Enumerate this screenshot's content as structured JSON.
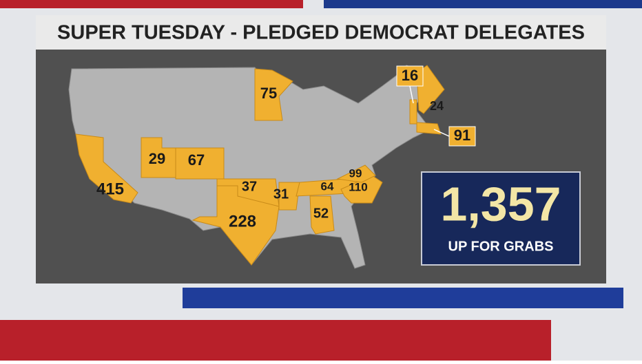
{
  "title": "SUPER TUESDAY - PLEDGED DEMOCRAT DELEGATES",
  "map": {
    "state_labels": [
      415,
      29,
      67,
      228,
      37,
      31,
      64,
      52,
      75,
      99,
      110,
      16,
      24,
      91
    ]
  },
  "total": {
    "value": "1,357",
    "caption": "UP FOR GRABS"
  }
}
